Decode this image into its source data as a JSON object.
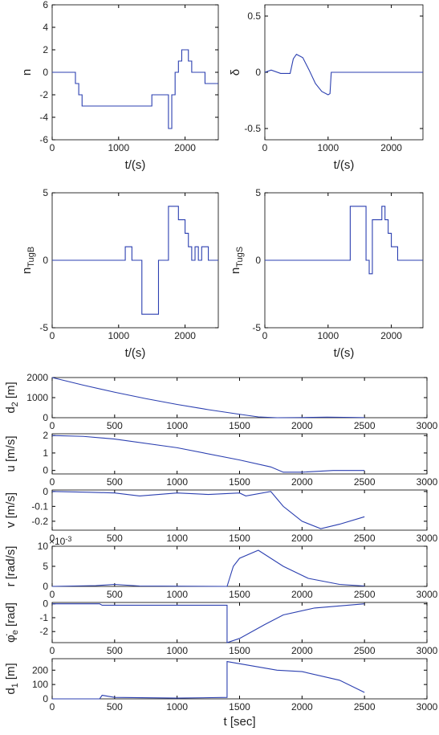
{
  "chart_data": [
    {
      "type": "line",
      "drawstyle": "steps-post",
      "xlabel": "t/(s)",
      "ylabel": [
        {
          "text": "n"
        }
      ],
      "xlim": [
        0,
        2500
      ],
      "xticks": [
        0,
        1000,
        2000
      ],
      "ylim": [
        -6,
        6
      ],
      "yticks": [
        -6,
        -4,
        -2,
        0,
        2,
        4,
        6
      ],
      "series": [
        {
          "color": "#2b3fb0",
          "x": [
            0,
            350,
            400,
            450,
            1500,
            1750,
            1800,
            1850,
            1900,
            1950,
            2050,
            2100,
            2300,
            2500
          ],
          "values": [
            0,
            -1,
            -2,
            -3,
            -2,
            -5,
            -2,
            0,
            1,
            2,
            1,
            0,
            -1,
            -1
          ]
        }
      ]
    },
    {
      "type": "line",
      "xlabel": "t/(s)",
      "ylabel": [
        {
          "text": "δ"
        }
      ],
      "xlim": [
        0,
        2500
      ],
      "xticks": [
        0,
        1000,
        2000
      ],
      "ylim": [
        -0.6,
        0.6
      ],
      "yticks": [
        -0.5,
        0,
        0.5
      ],
      "series": [
        {
          "color": "#2b3fb0",
          "x": [
            0,
            100,
            250,
            400,
            450,
            500,
            600,
            700,
            800,
            900,
            1000,
            1030,
            1050,
            2500
          ],
          "values": [
            0,
            0.02,
            -0.01,
            -0.01,
            0.12,
            0.16,
            0.13,
            0.02,
            -0.1,
            -0.17,
            -0.2,
            -0.19,
            0,
            0
          ]
        }
      ]
    },
    {
      "type": "line",
      "drawstyle": "steps-post",
      "xlabel": "t/(s)",
      "ylabel": [
        {
          "text": "n"
        },
        {
          "text": "TugB",
          "sub": true
        }
      ],
      "xlim": [
        0,
        2500
      ],
      "xticks": [
        0,
        1000,
        2000
      ],
      "ylim": [
        -5,
        5
      ],
      "yticks": [
        -5,
        0,
        5
      ],
      "series": [
        {
          "color": "#2b3fb0",
          "x": [
            0,
            1100,
            1200,
            1350,
            1600,
            1750,
            1900,
            2000,
            2050,
            2100,
            2150,
            2200,
            2250,
            2350,
            2500
          ],
          "values": [
            0,
            1,
            0,
            -4,
            0,
            4,
            3,
            2,
            1,
            0,
            1,
            0,
            1,
            0,
            0
          ]
        }
      ]
    },
    {
      "type": "line",
      "drawstyle": "steps-post",
      "xlabel": "t/(s)",
      "ylabel": [
        {
          "text": "n"
        },
        {
          "text": "TugS",
          "sub": true
        }
      ],
      "xlim": [
        0,
        2500
      ],
      "xticks": [
        0,
        1000,
        2000
      ],
      "ylim": [
        -5,
        5
      ],
      "yticks": [
        -5,
        0,
        5
      ],
      "series": [
        {
          "color": "#2b3fb0",
          "x": [
            0,
            1350,
            1600,
            1650,
            1700,
            1750,
            1850,
            1900,
            1950,
            2000,
            2100,
            2500
          ],
          "values": [
            0,
            4,
            0,
            -1,
            3,
            3,
            4,
            3,
            2,
            1,
            0,
            0
          ]
        }
      ]
    },
    {
      "type": "line",
      "ylabel": [
        {
          "text": "d"
        },
        {
          "text": "2",
          "sub": true
        },
        {
          "text": "[m]"
        }
      ],
      "xlim": [
        0,
        3000
      ],
      "xticks": [
        0,
        500,
        1000,
        1500,
        2000,
        2500,
        3000
      ],
      "ylim": [
        0,
        2000
      ],
      "yticks": [
        0,
        1000,
        2000
      ],
      "series": [
        {
          "color": "#2b3fb0",
          "x": [
            0,
            250,
            500,
            750,
            1000,
            1250,
            1500,
            1650,
            1800,
            2000,
            2200,
            2400,
            2500
          ],
          "values": [
            2000,
            1620,
            1270,
            950,
            660,
            400,
            170,
            40,
            0,
            10,
            30,
            15,
            5
          ]
        }
      ]
    },
    {
      "type": "line",
      "ylabel": [
        {
          "text": "u [m/s]"
        }
      ],
      "xlim": [
        0,
        3000
      ],
      "xticks": [
        0,
        500,
        1000,
        1500,
        2000,
        2500,
        3000
      ],
      "ylim": [
        -0.2,
        2.1
      ],
      "yticks": [
        0,
        1,
        2
      ],
      "series": [
        {
          "color": "#2b3fb0",
          "x": [
            0,
            250,
            500,
            1000,
            1500,
            1750,
            1850,
            2000,
            2250,
            2500
          ],
          "values": [
            2,
            1.95,
            1.8,
            1.3,
            0.6,
            0.2,
            -0.1,
            -0.1,
            0,
            0
          ]
        }
      ]
    },
    {
      "type": "line",
      "ylabel": [
        {
          "text": "v [m/s]"
        }
      ],
      "xlim": [
        0,
        3000
      ],
      "xticks": [
        0,
        500,
        1000,
        1500,
        2000,
        2500,
        3000
      ],
      "ylim": [
        -0.26,
        0.01
      ],
      "yticks": [
        -0.2,
        -0.1,
        0
      ],
      "series": [
        {
          "color": "#2b3fb0",
          "x": [
            0,
            300,
            500,
            700,
            1000,
            1250,
            1500,
            1550,
            1750,
            1850,
            2000,
            2150,
            2300,
            2500
          ],
          "values": [
            0,
            -0.005,
            -0.01,
            -0.03,
            -0.01,
            -0.02,
            -0.01,
            -0.03,
            0,
            -0.1,
            -0.2,
            -0.25,
            -0.22,
            -0.17
          ]
        }
      ]
    },
    {
      "type": "line",
      "ylabel": [
        {
          "text": "r [rad/s]"
        }
      ],
      "yscale_label": "×10",
      "yscale_exponent": "-3",
      "xlim": [
        0,
        3000
      ],
      "xticks": [
        0,
        500,
        1000,
        1500,
        2000,
        2500,
        3000
      ],
      "ylim": [
        0,
        10
      ],
      "yticks": [
        0,
        5,
        10
      ],
      "series": [
        {
          "color": "#2b3fb0",
          "x": [
            0,
            350,
            500,
            700,
            1400,
            1450,
            1500,
            1650,
            1850,
            2050,
            2300,
            2500
          ],
          "values": [
            0,
            0.2,
            0.5,
            0.1,
            0,
            5,
            7,
            9,
            5,
            2,
            0.5,
            0.1
          ]
        }
      ]
    },
    {
      "type": "line",
      "ylabel": [
        {
          "text": "φ̇"
        },
        {
          "text": "e",
          "sub": true
        },
        {
          "text": "[rad]"
        }
      ],
      "xlim": [
        0,
        3000
      ],
      "xticks": [
        0,
        500,
        1000,
        1500,
        2000,
        2500,
        3000
      ],
      "ylim": [
        -2.8,
        0.1
      ],
      "yticks": [
        -2,
        -1,
        0
      ],
      "series": [
        {
          "color": "#2b3fb0",
          "x": [
            0,
            380,
            400,
            1400,
            1400,
            1500,
            1700,
            1850,
            2100,
            2500
          ],
          "values": [
            0,
            0,
            -0.1,
            -0.1,
            -2.8,
            -2.5,
            -1.5,
            -0.8,
            -0.3,
            0
          ]
        }
      ]
    },
    {
      "type": "line",
      "xlabel": "t [sec]",
      "ylabel": [
        {
          "text": "d"
        },
        {
          "text": "1",
          "sub": true
        },
        {
          "text": "[m]"
        }
      ],
      "xlim": [
        0,
        3000
      ],
      "xticks": [
        0,
        500,
        1000,
        1500,
        2000,
        2500,
        3000
      ],
      "ylim": [
        0,
        280
      ],
      "yticks": [
        0,
        100,
        200
      ],
      "series": [
        {
          "color": "#2b3fb0",
          "x": [
            0,
            380,
            400,
            500,
            1000,
            1400,
            1400,
            1600,
            1800,
            2000,
            2300,
            2500
          ],
          "values": [
            0,
            0,
            25,
            10,
            5,
            10,
            260,
            230,
            200,
            190,
            130,
            45
          ]
        }
      ]
    }
  ]
}
